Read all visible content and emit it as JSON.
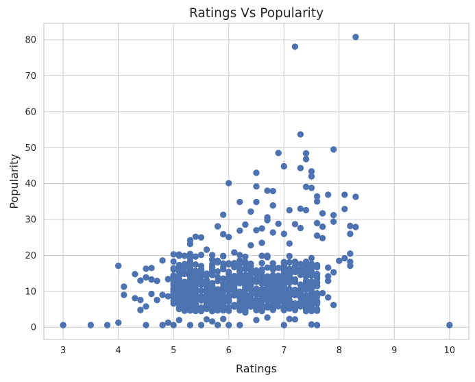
{
  "chart_data": {
    "type": "scatter",
    "title": "Ratings Vs Popularity",
    "xlabel": "Ratings",
    "ylabel": "Popularity",
    "xlim": [
      2.65,
      10.35
    ],
    "ylim": [
      -3.4,
      84.6
    ],
    "xticks": [
      "3",
      "4",
      "5",
      "6",
      "7",
      "8",
      "9",
      "10"
    ],
    "yticks": [
      "0",
      "10",
      "20",
      "30",
      "40",
      "50",
      "60",
      "70",
      "80"
    ],
    "grid": true,
    "color": "#4c72b0",
    "points": [
      [
        8.3,
        80.8
      ],
      [
        7.2,
        78.1
      ],
      [
        7.3,
        53.7
      ],
      [
        7.9,
        49.5
      ],
      [
        6.9,
        48.5
      ],
      [
        7.4,
        48.4
      ],
      [
        7.4,
        46.8
      ],
      [
        7.0,
        44.8
      ],
      [
        7.3,
        44.3
      ],
      [
        6.5,
        43.0
      ],
      [
        7.5,
        43.4
      ],
      [
        7.5,
        42.0
      ],
      [
        6.0,
        40.1
      ],
      [
        6.5,
        39.2
      ],
      [
        7.4,
        39.1
      ],
      [
        7.5,
        38.8
      ],
      [
        6.7,
        38.0
      ],
      [
        6.8,
        37.9
      ],
      [
        7.6,
        36.4
      ],
      [
        8.3,
        36.3
      ],
      [
        7.8,
        36.9
      ],
      [
        8.1,
        36.9
      ],
      [
        7.6,
        35.0
      ],
      [
        6.2,
        34.9
      ],
      [
        6.5,
        34.9
      ],
      [
        6.8,
        33.9
      ],
      [
        7.3,
        33.0
      ],
      [
        7.4,
        32.6
      ],
      [
        7.1,
        32.6
      ],
      [
        8.1,
        32.9
      ],
      [
        6.4,
        32.2
      ],
      [
        7.7,
        31.7
      ],
      [
        5.9,
        31.3
      ],
      [
        6.7,
        30.6
      ],
      [
        7.9,
        31.2
      ],
      [
        6.7,
        29.8
      ],
      [
        7.9,
        29.4
      ],
      [
        7.6,
        29.0
      ],
      [
        7.2,
        28.7
      ],
      [
        6.9,
        28.8
      ],
      [
        6.3,
        28.6
      ],
      [
        5.8,
        28.1
      ],
      [
        7.7,
        28.0
      ],
      [
        8.2,
        28.2
      ],
      [
        8.3,
        27.9
      ],
      [
        6.6,
        27.5
      ],
      [
        7.3,
        27.6
      ],
      [
        6.5,
        27.0
      ],
      [
        5.3,
        24.2
      ],
      [
        5.5,
        25.0
      ],
      [
        6.0,
        25.1
      ],
      [
        7.0,
        26.0
      ],
      [
        7.6,
        25.5
      ],
      [
        8.2,
        26.0
      ],
      [
        5.3,
        23.2
      ],
      [
        5.4,
        25.2
      ],
      [
        5.9,
        25.9
      ],
      [
        6.2,
        26.9
      ],
      [
        6.8,
        26.4
      ],
      [
        7.7,
        24.8
      ],
      [
        5.0,
        20.3
      ],
      [
        5.3,
        20.4
      ],
      [
        5.6,
        21.6
      ],
      [
        6.4,
        22.8
      ],
      [
        6.6,
        23.5
      ],
      [
        7.1,
        23.3
      ],
      [
        8.2,
        20.5
      ],
      [
        8.1,
        19.2
      ],
      [
        8.0,
        18.5
      ],
      [
        8.2,
        18.2
      ],
      [
        8.2,
        17.1
      ],
      [
        7.9,
        15.3
      ],
      [
        7.8,
        16.6
      ],
      [
        7.8,
        14.2
      ],
      [
        7.8,
        12.9
      ],
      [
        7.9,
        6.2
      ],
      [
        7.8,
        8.3
      ],
      [
        7.7,
        9.5
      ],
      [
        4.0,
        17.1
      ],
      [
        4.3,
        14.8
      ],
      [
        4.4,
        13.0
      ],
      [
        4.5,
        13.9
      ],
      [
        4.6,
        13.3
      ],
      [
        4.7,
        12.9
      ],
      [
        4.8,
        18.6
      ],
      [
        4.5,
        16.3
      ],
      [
        4.6,
        16.5
      ],
      [
        4.9,
        13.4
      ],
      [
        4.1,
        11.3
      ],
      [
        4.1,
        9.0
      ],
      [
        4.3,
        8.1
      ],
      [
        4.4,
        7.6
      ],
      [
        4.6,
        9.3
      ],
      [
        4.7,
        7.6
      ],
      [
        4.8,
        9.0
      ],
      [
        4.4,
        4.8
      ],
      [
        4.5,
        5.8
      ],
      [
        4.9,
        8.6
      ],
      [
        5.0,
        12.2
      ],
      [
        5.0,
        9.8
      ],
      [
        5.1,
        14.2
      ],
      [
        5.2,
        12.6
      ],
      [
        3.0,
        0.6
      ],
      [
        3.5,
        0.6
      ],
      [
        3.8,
        0.6
      ],
      [
        4.0,
        1.3
      ],
      [
        4.5,
        0.6
      ],
      [
        4.8,
        0.6
      ],
      [
        4.9,
        1.3
      ],
      [
        5.0,
        0.6
      ],
      [
        5.1,
        2.0
      ],
      [
        5.3,
        0.6
      ],
      [
        5.5,
        0.6
      ],
      [
        5.6,
        2.2
      ],
      [
        5.7,
        1.6
      ],
      [
        5.8,
        0.6
      ],
      [
        5.9,
        2.3
      ],
      [
        6.0,
        0.6
      ],
      [
        6.2,
        0.6
      ],
      [
        6.5,
        2.0
      ],
      [
        6.7,
        2.7
      ],
      [
        7.0,
        0.6
      ],
      [
        7.1,
        2.3
      ],
      [
        7.2,
        2.2
      ],
      [
        7.5,
        0.8
      ],
      [
        7.6,
        0.6
      ],
      [
        10.0,
        0.6
      ],
      [
        6.1,
        6.2
      ],
      [
        5.9,
        4.7
      ],
      [
        6.3,
        4.1
      ],
      [
        6.6,
        6.0
      ],
      [
        6.8,
        5.0
      ],
      [
        7.1,
        5.2
      ],
      [
        7.4,
        4.5
      ],
      [
        5.5,
        5.2
      ],
      [
        5.7,
        6.6
      ],
      [
        6.4,
        7.5
      ],
      [
        7.3,
        6.6
      ]
    ]
  }
}
